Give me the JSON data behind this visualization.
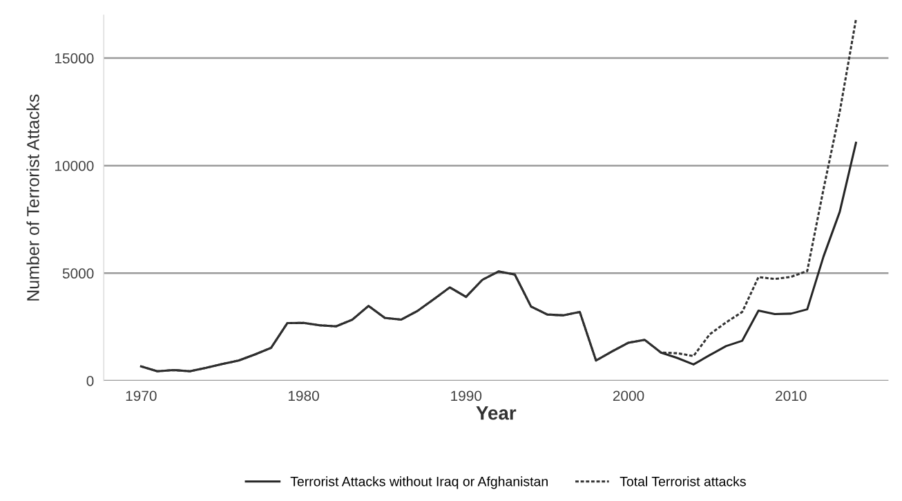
{
  "chart_data": {
    "type": "line",
    "xlabel": "Year",
    "ylabel": "Number of Terrorist Attacks",
    "x": [
      1970,
      1971,
      1972,
      1973,
      1974,
      1975,
      1976,
      1977,
      1978,
      1979,
      1980,
      1981,
      1982,
      1983,
      1984,
      1985,
      1986,
      1987,
      1988,
      1989,
      1990,
      1991,
      1992,
      1993,
      1994,
      1995,
      1996,
      1997,
      1998,
      1999,
      2000,
      2001,
      2002,
      2003,
      2004,
      2005,
      2006,
      2007,
      2008,
      2009,
      2010,
      2011,
      2012,
      2013,
      2014
    ],
    "series": [
      {
        "name": "Terrorist Attacks without Iraq or Afghanistan",
        "color": "#262626",
        "line_style": "solid",
        "values": [
          670,
          440,
          500,
          440,
          600,
          780,
          940,
          1220,
          1530,
          2680,
          2690,
          2580,
          2530,
          2840,
          3480,
          2920,
          2840,
          3240,
          3780,
          4340,
          3900,
          4690,
          5080,
          4940,
          3450,
          3080,
          3040,
          3200,
          940,
          1370,
          1770,
          1900,
          1310,
          1060,
          760,
          1190,
          1610,
          1860,
          3260,
          3100,
          3120,
          3320,
          5770,
          7850,
          11060
        ]
      },
      {
        "name": "Total Terrorist attacks",
        "color": "#333333",
        "line_style": "dashed",
        "values": [
          670,
          440,
          500,
          440,
          600,
          780,
          940,
          1220,
          1530,
          2680,
          2690,
          2580,
          2530,
          2840,
          3480,
          2920,
          2840,
          3240,
          3780,
          4340,
          3900,
          4690,
          5080,
          4940,
          3450,
          3080,
          3040,
          3200,
          940,
          1370,
          1770,
          1900,
          1310,
          1280,
          1150,
          2160,
          2710,
          3200,
          4820,
          4730,
          4830,
          5100,
          8900,
          12500,
          16800
        ]
      }
    ],
    "xlim": [
      1967.7,
      2016
    ],
    "xticks": [
      1970,
      1980,
      1990,
      2000,
      2010
    ],
    "ylim": [
      0,
      17000
    ],
    "yticks": [
      0,
      5000,
      10000,
      15000
    ],
    "grid": "y",
    "legend": "bottom",
    "marker": "none"
  }
}
